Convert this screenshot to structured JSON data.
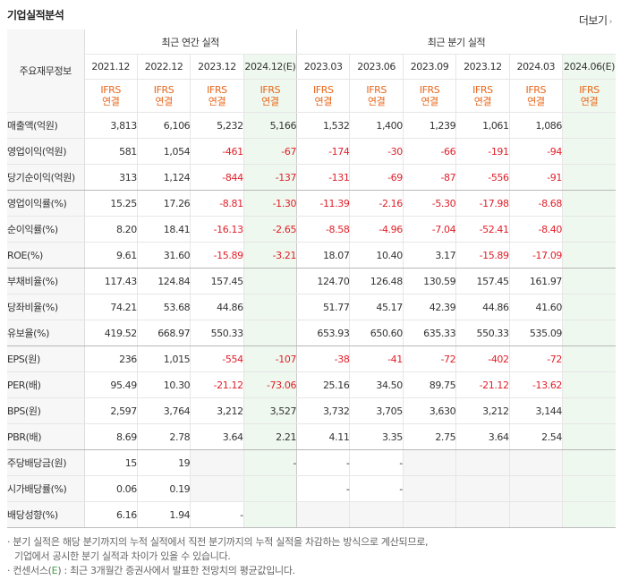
{
  "header": {
    "title": "기업실적분석",
    "more_label": "더보기",
    "more_icon": "chevron-right-icon"
  },
  "table": {
    "corner_label": "주요재무정보",
    "annual_group": "최근 연간 실적",
    "quarter_group": "최근 분기 실적",
    "ifrs_top": "IFRS",
    "ifrs_bottom": "연결",
    "columns": [
      {
        "label": "2021.12",
        "est": false
      },
      {
        "label": "2022.12",
        "est": false
      },
      {
        "label": "2023.12",
        "est": false
      },
      {
        "label": "2024.12(E)",
        "est": true
      },
      {
        "label": "2023.03",
        "est": false
      },
      {
        "label": "2023.06",
        "est": false
      },
      {
        "label": "2023.09",
        "est": false
      },
      {
        "label": "2023.12",
        "est": false
      },
      {
        "label": "2024.03",
        "est": false
      },
      {
        "label": "2024.06(E)",
        "est": true
      }
    ],
    "rows": [
      {
        "label": "매출액(억원)",
        "values": [
          "3,813",
          "6,106",
          "5,232",
          "5,166",
          "1,532",
          "1,400",
          "1,239",
          "1,061",
          "1,086",
          ""
        ]
      },
      {
        "label": "영업이익(억원)",
        "values": [
          "581",
          "1,054",
          "-461",
          "-67",
          "-174",
          "-30",
          "-66",
          "-191",
          "-94",
          ""
        ]
      },
      {
        "label": "당기순이익(억원)",
        "values": [
          "313",
          "1,124",
          "-844",
          "-137",
          "-131",
          "-69",
          "-87",
          "-556",
          "-91",
          ""
        ]
      },
      {
        "label": "영업이익률(%)",
        "values": [
          "15.25",
          "17.26",
          "-8.81",
          "-1.30",
          "-11.39",
          "-2.16",
          "-5.30",
          "-17.98",
          "-8.68",
          ""
        ]
      },
      {
        "label": "순이익률(%)",
        "values": [
          "8.20",
          "18.41",
          "-16.13",
          "-2.65",
          "-8.58",
          "-4.96",
          "-7.04",
          "-52.41",
          "-8.40",
          ""
        ]
      },
      {
        "label": "ROE(%)",
        "values": [
          "9.61",
          "31.60",
          "-15.89",
          "-3.21",
          "18.07",
          "10.40",
          "3.17",
          "-15.89",
          "-17.09",
          ""
        ]
      },
      {
        "label": "부채비율(%)",
        "values": [
          "117.43",
          "124.84",
          "157.45",
          "",
          "124.70",
          "126.48",
          "130.59",
          "157.45",
          "161.97",
          ""
        ]
      },
      {
        "label": "당좌비율(%)",
        "values": [
          "74.21",
          "53.68",
          "44.86",
          "",
          "51.77",
          "45.17",
          "42.39",
          "44.86",
          "41.60",
          ""
        ]
      },
      {
        "label": "유보율(%)",
        "values": [
          "419.52",
          "668.97",
          "550.33",
          "",
          "653.93",
          "650.60",
          "635.33",
          "550.33",
          "535.09",
          ""
        ]
      },
      {
        "label": "EPS(원)",
        "values": [
          "236",
          "1,015",
          "-554",
          "-107",
          "-38",
          "-41",
          "-72",
          "-402",
          "-72",
          ""
        ]
      },
      {
        "label": "PER(배)",
        "values": [
          "95.49",
          "10.30",
          "-21.12",
          "-73.06",
          "25.16",
          "34.50",
          "89.75",
          "-21.12",
          "-13.62",
          ""
        ]
      },
      {
        "label": "BPS(원)",
        "values": [
          "2,597",
          "3,764",
          "3,212",
          "3,527",
          "3,732",
          "3,705",
          "3,630",
          "3,212",
          "3,144",
          ""
        ]
      },
      {
        "label": "PBR(배)",
        "values": [
          "8.69",
          "2.78",
          "3.64",
          "2.21",
          "4.11",
          "3.35",
          "2.75",
          "3.64",
          "2.54",
          ""
        ]
      },
      {
        "label": "주당배당금(원)",
        "values": [
          "15",
          "19",
          "",
          "-",
          "-",
          "-",
          "",
          "",
          "",
          ""
        ]
      },
      {
        "label": "시가배당률(%)",
        "values": [
          "0.06",
          "0.19",
          "",
          "",
          "-",
          "-",
          "",
          "",
          "",
          ""
        ]
      },
      {
        "label": "배당성향(%)",
        "values": [
          "6.16",
          "1.94",
          "-",
          "",
          "",
          "",
          "",
          "",
          "",
          ""
        ]
      }
    ]
  },
  "notes": {
    "line1": "· 분기 실적은 해당 분기까지의 누적 실적에서 직전 분기까지의 누적 실적을 차감하는 방식으로 계산되므로,",
    "line2": "기업에서 공시한 분기 실적과 차이가 있을 수 있습니다.",
    "line3_pre": "· 컨센서스(",
    "line3_e": "E",
    "line3_post": ") : 최근 3개월간 증권사에서 발표한 전망치의 평균값입니다."
  }
}
